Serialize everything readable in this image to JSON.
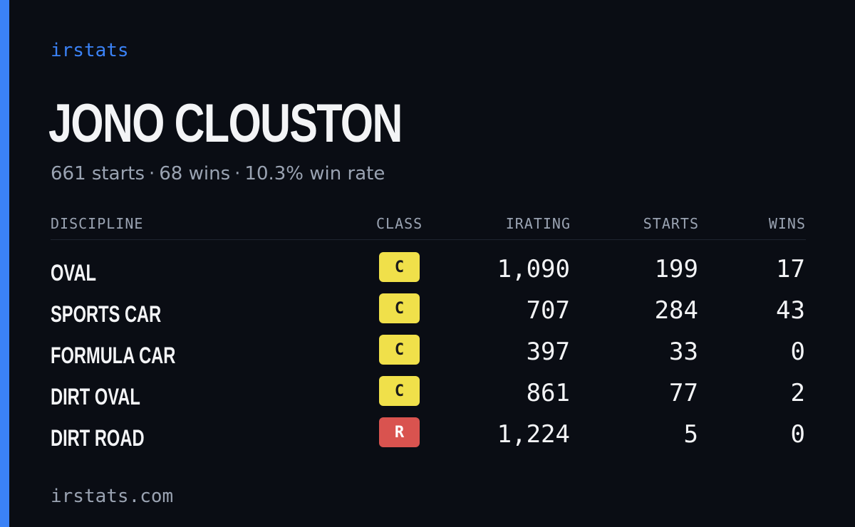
{
  "brand": "irstats",
  "driver": {
    "name": "JONO CLOUSTON",
    "starts_text": "661 starts",
    "wins_text": "68 wins",
    "winrate_text": "10.3% win rate",
    "separator": "·"
  },
  "table": {
    "headers": {
      "discipline": "DISCIPLINE",
      "class": "CLASS",
      "irating": "IRATING",
      "starts": "STARTS",
      "wins": "WINS"
    },
    "rows": [
      {
        "discipline": "OVAL",
        "class": "C",
        "irating": "1,090",
        "starts": "199",
        "wins": "17",
        "badge_bg": "#f0e04a",
        "badge_fg": "#1a1a1a"
      },
      {
        "discipline": "SPORTS CAR",
        "class": "C",
        "irating": "707",
        "starts": "284",
        "wins": "43",
        "badge_bg": "#f0e04a",
        "badge_fg": "#1a1a1a"
      },
      {
        "discipline": "FORMULA CAR",
        "class": "C",
        "irating": "397",
        "starts": "33",
        "wins": "0",
        "badge_bg": "#f0e04a",
        "badge_fg": "#1a1a1a"
      },
      {
        "discipline": "DIRT OVAL",
        "class": "C",
        "irating": "861",
        "starts": "77",
        "wins": "2",
        "badge_bg": "#f0e04a",
        "badge_fg": "#1a1a1a"
      },
      {
        "discipline": "DIRT ROAD",
        "class": "R",
        "irating": "1,224",
        "starts": "5",
        "wins": "0",
        "badge_bg": "#d9534f",
        "badge_fg": "#ffffff"
      }
    ]
  },
  "footer": "irstats.com",
  "colors": {
    "accent": "#3b82f6",
    "background": "#0a0d14",
    "muted": "#9aa3b2",
    "text": "#f3f4f6"
  }
}
